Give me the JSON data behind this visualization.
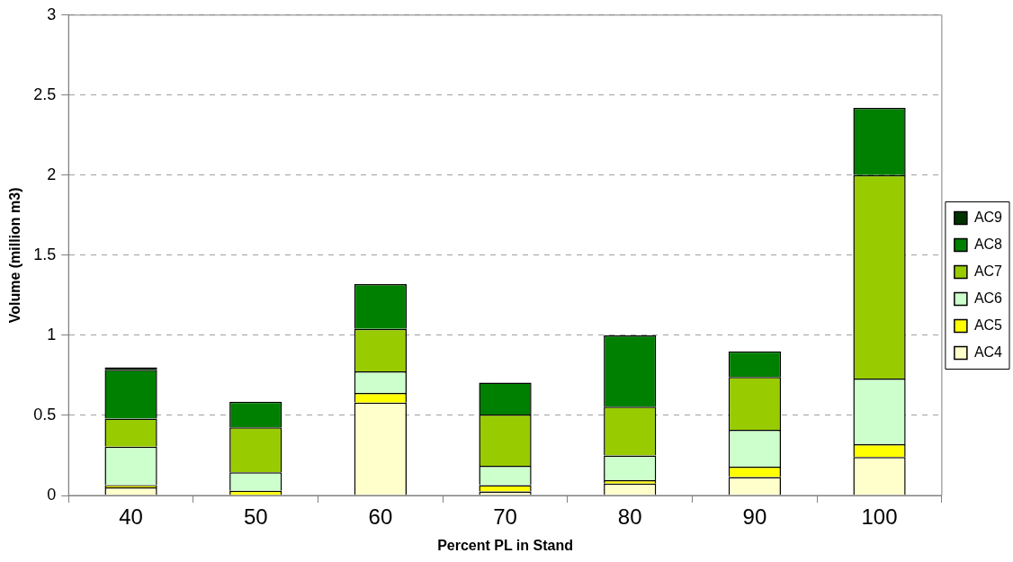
{
  "chart_data": {
    "type": "bar",
    "stacked": true,
    "xlabel": "Percent PL in Stand",
    "ylabel": "Volume (million m3)",
    "categories": [
      "40",
      "50",
      "60",
      "70",
      "80",
      "90",
      "100"
    ],
    "series": [
      {
        "name": "AC4",
        "color": "#ffffcc",
        "values": [
          0.05,
          null,
          0.58,
          0.025,
          0.075,
          0.115,
          0.24
        ]
      },
      {
        "name": "AC5",
        "color": "#ffff00",
        "values": [
          0.015,
          0.03,
          0.06,
          0.04,
          0.02,
          0.065,
          0.08
        ]
      },
      {
        "name": "AC6",
        "color": "#ccffcc",
        "values": [
          0.24,
          0.115,
          0.135,
          0.12,
          0.155,
          0.23,
          0.41
        ]
      },
      {
        "name": "AC7",
        "color": "#99cc00",
        "values": [
          0.175,
          0.28,
          0.265,
          0.32,
          0.305,
          0.33,
          1.27
        ]
      },
      {
        "name": "AC8",
        "color": "#008000",
        "values": [
          0.305,
          0.16,
          0.28,
          0.2,
          0.445,
          0.16,
          0.42
        ]
      },
      {
        "name": "AC9",
        "color": "#003300",
        "values": [
          0.015,
          0,
          0,
          0,
          0,
          0,
          0
        ]
      }
    ],
    "ylim": [
      0,
      3
    ],
    "yticks": [
      0,
      0.5,
      1,
      1.5,
      2,
      2.5,
      3
    ],
    "grid": "y",
    "legend": "right"
  }
}
